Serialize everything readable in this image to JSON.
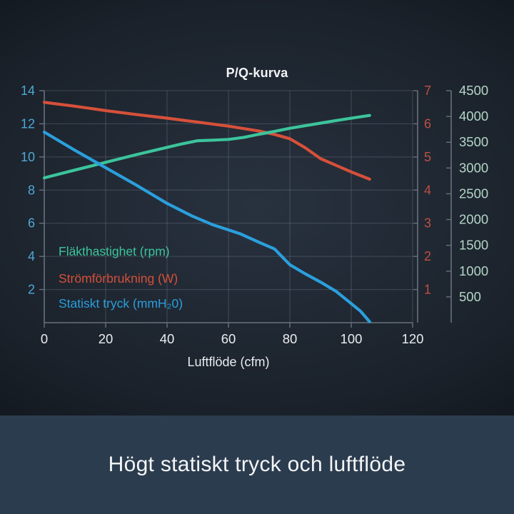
{
  "chart_data": {
    "type": "line",
    "title": "P/Q-kurva",
    "xlabel": "Luftflöde (cfm)",
    "xlim": [
      0,
      120
    ],
    "x_ticks": [
      0,
      20,
      40,
      60,
      80,
      100,
      120
    ],
    "grid": true,
    "axes": {
      "left": {
        "range": [
          0,
          14
        ],
        "ticks": [
          2,
          4,
          6,
          8,
          10,
          12,
          14
        ],
        "color": "#4fa8d5"
      },
      "power": {
        "range": [
          0,
          7
        ],
        "ticks": [
          1,
          2,
          3,
          4,
          5,
          6,
          7
        ],
        "color": "#bf5040"
      },
      "rpm": {
        "range": [
          0,
          4500
        ],
        "ticks": [
          500,
          1000,
          1500,
          2000,
          2500,
          3000,
          3500,
          4000,
          4500
        ],
        "color": "#b4d6c6"
      }
    },
    "series": [
      {
        "name": "Strömförbrukning (W)",
        "axis": "power",
        "color": "#d6503a",
        "points": [
          [
            0,
            6.65
          ],
          [
            10,
            6.53
          ],
          [
            20,
            6.4
          ],
          [
            30,
            6.28
          ],
          [
            40,
            6.17
          ],
          [
            50,
            6.05
          ],
          [
            60,
            5.93
          ],
          [
            70,
            5.78
          ],
          [
            75,
            5.68
          ],
          [
            80,
            5.55
          ],
          [
            85,
            5.28
          ],
          [
            90,
            4.95
          ],
          [
            95,
            4.75
          ],
          [
            100,
            4.55
          ],
          [
            106,
            4.33
          ]
        ]
      },
      {
        "name": "Fläkthastighet (rpm)",
        "axis": "rpm",
        "color": "#3cc49c",
        "points": [
          [
            0,
            2810
          ],
          [
            10,
            2960
          ],
          [
            20,
            3110
          ],
          [
            30,
            3260
          ],
          [
            40,
            3400
          ],
          [
            45,
            3470
          ],
          [
            50,
            3530
          ],
          [
            55,
            3540
          ],
          [
            60,
            3555
          ],
          [
            65,
            3595
          ],
          [
            70,
            3655
          ],
          [
            75,
            3710
          ],
          [
            80,
            3770
          ],
          [
            85,
            3820
          ],
          [
            90,
            3870
          ],
          [
            95,
            3920
          ],
          [
            100,
            3965
          ],
          [
            106,
            4020
          ]
        ]
      },
      {
        "name": "Statiskt tryck (mmH₂0)",
        "axis": "left",
        "color": "#2b9fdc",
        "points": [
          [
            0,
            11.5
          ],
          [
            10,
            10.4
          ],
          [
            20,
            9.35
          ],
          [
            30,
            8.3
          ],
          [
            40,
            7.2
          ],
          [
            48,
            6.45
          ],
          [
            55,
            5.9
          ],
          [
            60,
            5.6
          ],
          [
            64,
            5.35
          ],
          [
            70,
            4.85
          ],
          [
            75,
            4.45
          ],
          [
            80,
            3.5
          ],
          [
            85,
            2.95
          ],
          [
            90,
            2.45
          ],
          [
            95,
            1.9
          ],
          [
            100,
            1.15
          ],
          [
            103,
            0.7
          ],
          [
            106,
            0.05
          ]
        ]
      }
    ],
    "legend": {
      "position": "inside-bottom-left",
      "entries": [
        "Fläkthastighet (rpm)",
        "Strömförbrukning (W)",
        "Statiskt tryck (mmH₂0)"
      ]
    }
  },
  "caption": {
    "text": "Högt statiskt tryck och luftflöde"
  },
  "colors": {
    "page_bg_center": "#28323f",
    "page_bg_edge": "#040608",
    "grid": "rgba(150,165,180,0.28)",
    "axis_line": "#68727c",
    "x_tick_labels": "#e9edf0",
    "title_text": "#f2f4f6",
    "caption_bg": "#2b3c4e",
    "caption_text": "#f3f5f7"
  }
}
